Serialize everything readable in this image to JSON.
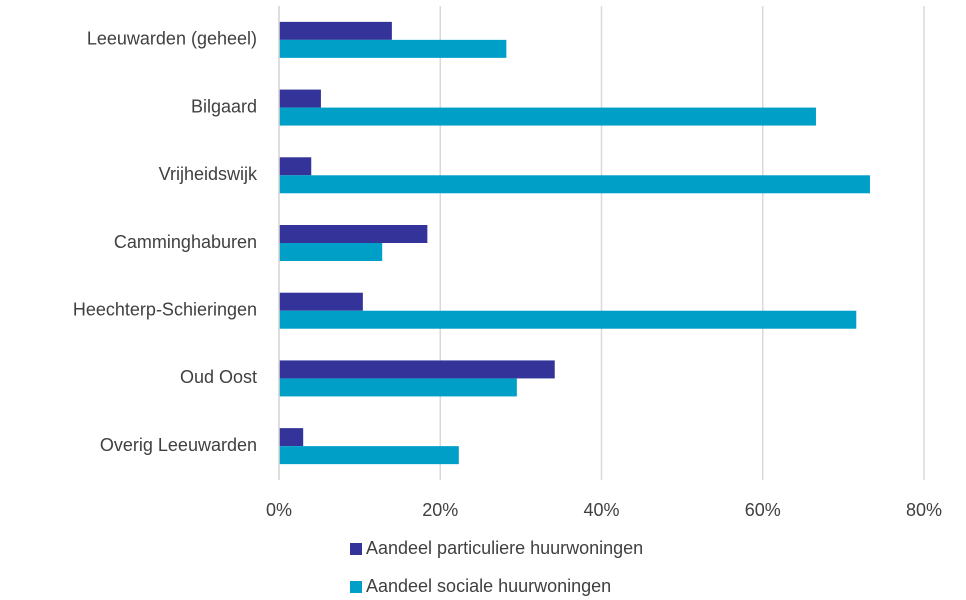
{
  "chart_data": {
    "type": "hbar",
    "categories": [
      "Leeuwarden (geheel)",
      "Bilgaard",
      "Vrijheidswijk",
      "Camminghaburen",
      "Heechterp-Schieringen",
      "Oud Oost",
      "Overig Leeuwarden"
    ],
    "series": [
      {
        "name": "Aandeel particuliere huurwoningen",
        "color": "#333399",
        "values": [
          14,
          5.2,
          4,
          18.4,
          10.4,
          34.2,
          3
        ]
      },
      {
        "name": "Aandeel sociale huurwoningen",
        "color": "#009fc8",
        "values": [
          28.2,
          66.6,
          73.3,
          12.8,
          71.6,
          29.5,
          22.3
        ]
      }
    ],
    "xlim": [
      0,
      80
    ],
    "xticks": [
      {
        "value": 0,
        "label": "0%"
      },
      {
        "value": 20,
        "label": "20%"
      },
      {
        "value": 40,
        "label": "40%"
      },
      {
        "value": 60,
        "label": "60%"
      },
      {
        "value": 80,
        "label": "80%"
      }
    ],
    "grid": true,
    "legend": "bottom"
  }
}
